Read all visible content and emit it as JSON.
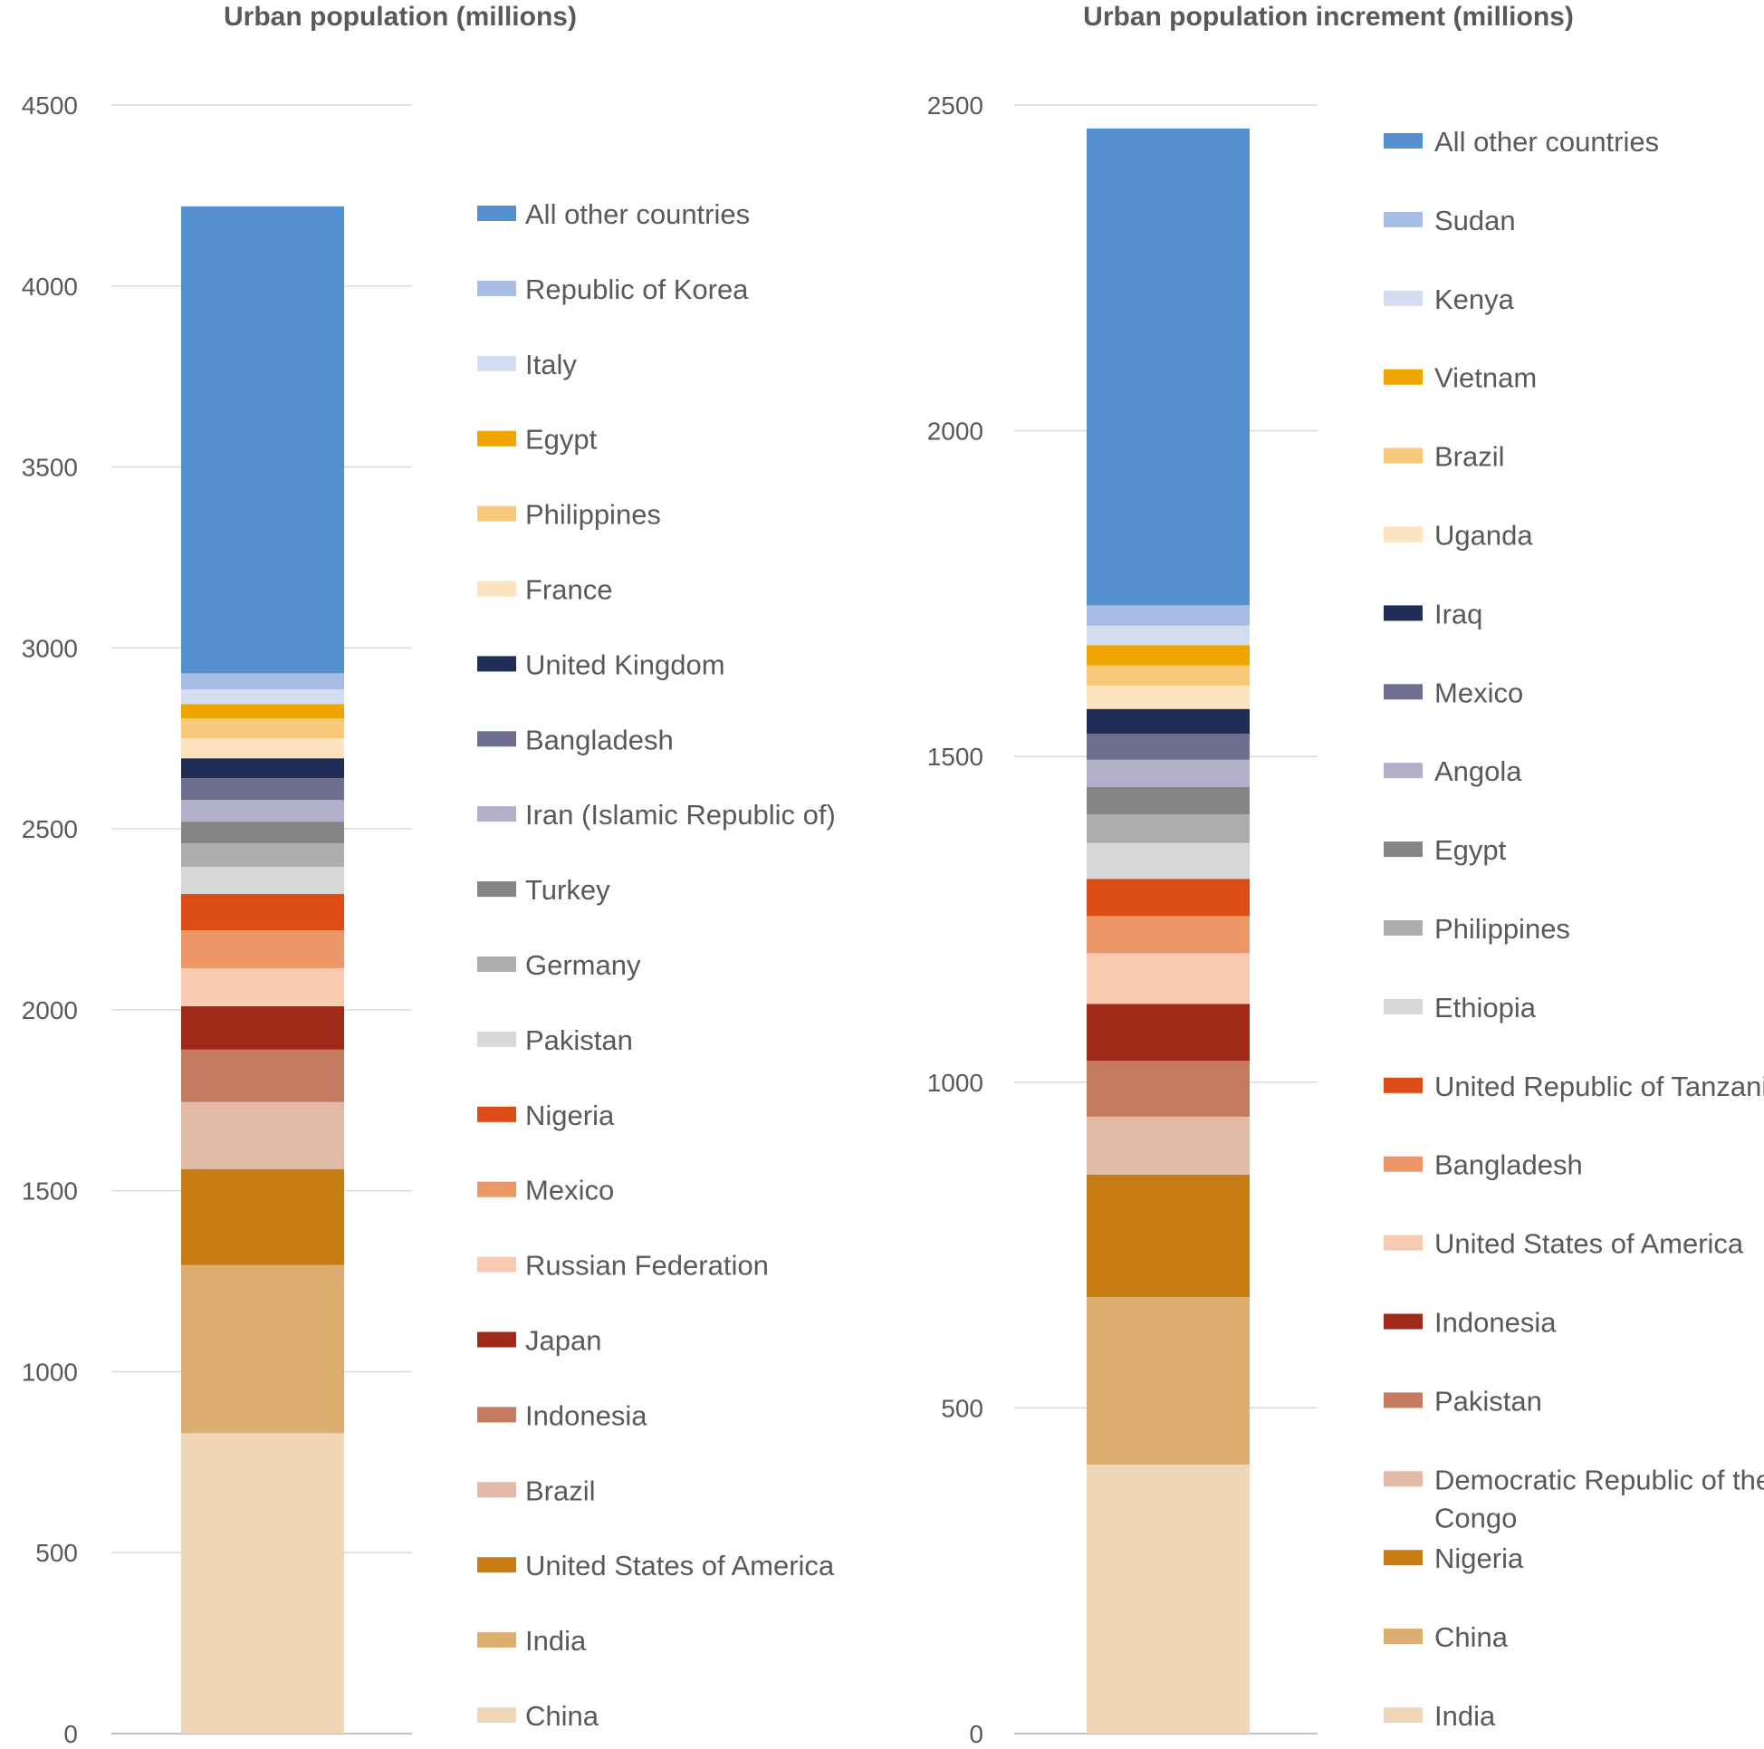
{
  "chart_data": [
    {
      "type": "bar",
      "stacked": true,
      "title": "Urban population (millions)",
      "ylim": [
        0,
        4500
      ],
      "yticks": [
        "0",
        "500",
        "1000",
        "1500",
        "2000",
        "2500",
        "3000",
        "3500",
        "4000",
        "4500"
      ],
      "grid": true,
      "legend_position": "right",
      "series": [
        {
          "name": "China",
          "value": 830,
          "color": "#efd7b8"
        },
        {
          "name": "India",
          "value": 465,
          "color": "#dcae70"
        },
        {
          "name": "United States of America",
          "value": 265,
          "color": "#c87c14"
        },
        {
          "name": "Brazil",
          "value": 185,
          "color": "#e1bba8"
        },
        {
          "name": "Indonesia",
          "value": 145,
          "color": "#c57b5f"
        },
        {
          "name": "Japan",
          "value": 120,
          "color": "#a0291a"
        },
        {
          "name": "Russian Federation",
          "value": 105,
          "color": "#f7cbb2"
        },
        {
          "name": "Mexico",
          "value": 105,
          "color": "#ed9768"
        },
        {
          "name": "Nigeria",
          "value": 100,
          "color": "#dd4c14"
        },
        {
          "name": "Pakistan",
          "value": 75,
          "color": "#d8d8d8"
        },
        {
          "name": "Germany",
          "value": 65,
          "color": "#aeaeae"
        },
        {
          "name": "Turkey",
          "value": 60,
          "color": "#848484"
        },
        {
          "name": "Iran (Islamic Republic of)",
          "value": 60,
          "color": "#b2b0c9"
        },
        {
          "name": "Bangladesh",
          "value": 60,
          "color": "#6e6e8e"
        },
        {
          "name": "United Kingdom",
          "value": 55,
          "color": "#1f2d57"
        },
        {
          "name": "France",
          "value": 55,
          "color": "#fde4c0"
        },
        {
          "name": "Philippines",
          "value": 55,
          "color": "#f9c97a"
        },
        {
          "name": "Egypt",
          "value": 40,
          "color": "#f0a500"
        },
        {
          "name": "Italy",
          "value": 40,
          "color": "#d2ddf0"
        },
        {
          "name": "Republic of Korea",
          "value": 45,
          "color": "#a7bde4"
        },
        {
          "name": "All other countries",
          "value": 1290,
          "color": "#5490cd"
        }
      ]
    },
    {
      "type": "bar",
      "stacked": true,
      "title": "Urban population increment (millions)",
      "ylim": [
        0,
        2500
      ],
      "yticks": [
        "0",
        "500",
        "1000",
        "1500",
        "2000",
        "2500"
      ],
      "grid": true,
      "legend_position": "right",
      "series": [
        {
          "name": "India",
          "value": 413,
          "color": "#efd7b8"
        },
        {
          "name": "China",
          "value": 257,
          "color": "#dcae70"
        },
        {
          "name": "Nigeria",
          "value": 188,
          "color": "#c87c14"
        },
        {
          "name": "Democratic Republic of the Congo",
          "value": 89,
          "color": "#e1bba8"
        },
        {
          "name": "Pakistan",
          "value": 86,
          "color": "#c57b5f"
        },
        {
          "name": "Indonesia",
          "value": 87,
          "color": "#a0291a"
        },
        {
          "name": "United States of America",
          "value": 78,
          "color": "#f7cbb2"
        },
        {
          "name": "Bangladesh",
          "value": 57,
          "color": "#ed9768"
        },
        {
          "name": "United Republic of Tanzania",
          "value": 57,
          "color": "#dd4c14"
        },
        {
          "name": "Ethiopia",
          "value": 55,
          "color": "#d8d8d8"
        },
        {
          "name": "Philippines",
          "value": 44,
          "color": "#aeaeae"
        },
        {
          "name": "Egypt",
          "value": 42,
          "color": "#848484"
        },
        {
          "name": "Angola",
          "value": 42,
          "color": "#b2b0c9"
        },
        {
          "name": "Mexico",
          "value": 40,
          "color": "#6e6e8e"
        },
        {
          "name": "Iraq",
          "value": 38,
          "color": "#1f2d57"
        },
        {
          "name": "Uganda",
          "value": 36,
          "color": "#fde4c0"
        },
        {
          "name": "Brazil",
          "value": 31,
          "color": "#f9c97a"
        },
        {
          "name": "Vietnam",
          "value": 31,
          "color": "#f0a500"
        },
        {
          "name": "Kenya",
          "value": 30,
          "color": "#d2ddf0"
        },
        {
          "name": "Sudan",
          "value": 31,
          "color": "#a7bde4"
        },
        {
          "name": "All other countries",
          "value": 732,
          "color": "#5490cd"
        }
      ]
    }
  ]
}
